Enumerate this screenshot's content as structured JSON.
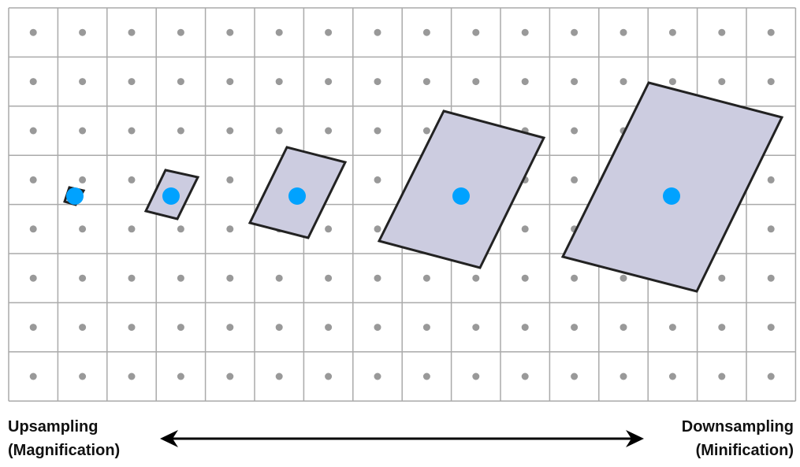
{
  "labels": {
    "left_line1": "Upsampling",
    "left_line2": "(Magnification)",
    "right_line1": "Downsampling",
    "right_line2": "(Minification)"
  },
  "grid": {
    "columns": 16,
    "rows": 8,
    "line_color": "#aaaaaa",
    "dot_color": "#999999"
  },
  "footprints": {
    "fill": "#cccce0",
    "stroke": "#222222",
    "center_color": "#00a2ff",
    "count": 5
  },
  "arrow": {
    "direction": "both",
    "color": "#000000"
  }
}
